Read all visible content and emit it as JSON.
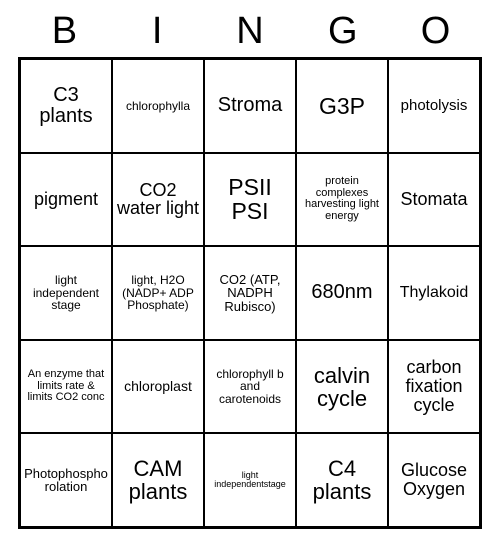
{
  "header": {
    "letters": [
      "B",
      "I",
      "N",
      "G",
      "O"
    ]
  },
  "grid": {
    "rows": 5,
    "cols": 5,
    "border_color": "#000000",
    "background_color": "#ffffff",
    "text_color": "#000000",
    "cells": [
      {
        "text": "C3 plants",
        "fs": "fs20"
      },
      {
        "text": "chlorophylla",
        "fs": "fs12"
      },
      {
        "text": "Stroma",
        "fs": "fs20"
      },
      {
        "text": "G3P",
        "fs": "fs23"
      },
      {
        "text": "photolysis",
        "fs": "fs15"
      },
      {
        "text": "pigment",
        "fs": "fs18"
      },
      {
        "text": "CO2 water light",
        "fs": "fs18"
      },
      {
        "text": "PSII PSI",
        "fs": "fs23"
      },
      {
        "text": "protein complexes harvesting light energy",
        "fs": "fs11"
      },
      {
        "text": "Stomata",
        "fs": "fs18"
      },
      {
        "text": "light independent stage",
        "fs": "fs12"
      },
      {
        "text": "light, H2O (NADP+ ADP Phosphate)",
        "fs": "fs12"
      },
      {
        "text": "CO2 (ATP, NADPH Rubisco)",
        "fs": "fs13"
      },
      {
        "text": "680nm",
        "fs": "fs20"
      },
      {
        "text": "Thylakoid",
        "fs": "fs16"
      },
      {
        "text": "An enzyme that limits rate & limits CO2 conc",
        "fs": "fs11"
      },
      {
        "text": "chloroplast",
        "fs": "fs14"
      },
      {
        "text": "chlorophyll b\nand carotenoids",
        "fs": "fs12"
      },
      {
        "text": "calvin cycle",
        "fs": "fs22"
      },
      {
        "text": "carbon fixation cycle",
        "fs": "fs18"
      },
      {
        "text": "Photophosphorolation",
        "fs": "fs13"
      },
      {
        "text": "CAM plants",
        "fs": "fs22"
      },
      {
        "text": "light independentstage",
        "fs": "fs9"
      },
      {
        "text": "C4 plants",
        "fs": "fs22"
      },
      {
        "text": "Glucose Oxygen",
        "fs": "fs18"
      }
    ]
  }
}
